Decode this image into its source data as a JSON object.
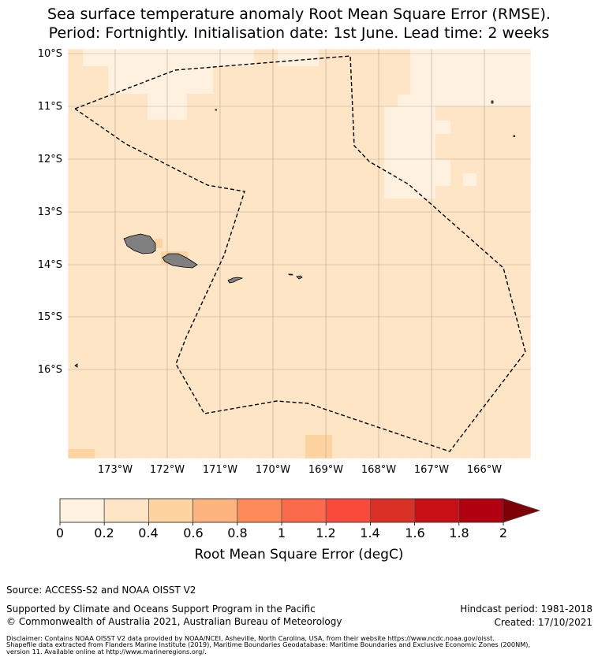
{
  "title": {
    "line1": "Sea surface temperature anomaly Root Mean Square Error (RMSE).",
    "line2": "Period: Fortnightly. Initialisation date: 1st June. Lead time: 2 weeks"
  },
  "map": {
    "lat_labels": [
      "10°S",
      "11°S",
      "12°S",
      "13°S",
      "14°S",
      "15°S",
      "16°S"
    ],
    "lon_labels": [
      "173°W",
      "172°W",
      "171°W",
      "170°W",
      "169°W",
      "168°W",
      "167°W",
      "166°W"
    ],
    "background_color": "#fde5c6"
  },
  "colorbar": {
    "tick_labels": [
      "0",
      "0.2",
      "0.4",
      "0.6",
      "0.8",
      "1",
      "1.2",
      "1.4",
      "1.6",
      "1.8",
      "2"
    ],
    "label": "Root Mean Square Error (degC)",
    "colors": [
      "#fff1e0",
      "#fde5c6",
      "#fdd4a0",
      "#fdb47e",
      "#fc8b59",
      "#fc6a4c",
      "#f84b3b",
      "#d93125",
      "#c70f15",
      "#b10010",
      "#7c0005"
    ]
  },
  "footer": {
    "source": "Source: ACCESS-S2 and NOAA OISST V2",
    "supported": "Supported by Climate and Oceans Support Program in the Pacific",
    "copyright": "© Commonwealth of Australia 2021, Australian Bureau of Meteorology",
    "hindcast": "Hindcast period: 1981-2018",
    "created": "Created: 17/10/2021",
    "disclaimer1": "Disclaimer: Contains NOAA OISST V2 data provided by NOAA/NCEI, Asheville, North Carolina, USA, from their website https://www.ncdc.noaa.gov/oisst.",
    "disclaimer2": "Shapefile data extracted from Flanders Marine Institute (2019), Maritime Boundaries Geodatabase: Maritime Boundaries and Exclusive Economic Zones (200NM),",
    "disclaimer3": "version 11. Available online at http://www.marineregions.org/."
  }
}
